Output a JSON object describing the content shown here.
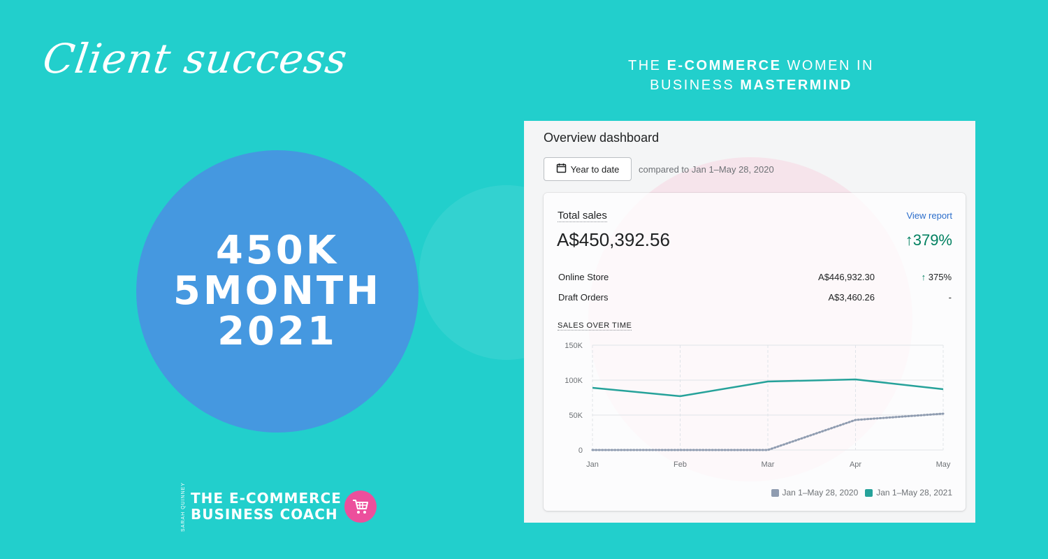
{
  "header": {
    "script_title": "Client success",
    "mastermind_line1_a": "THE ",
    "mastermind_line1_b": "E-COMMERCE",
    "mastermind_line1_c": " WOMEN IN",
    "mastermind_line2_a": "BUSINESS ",
    "mastermind_line2_b": "MASTERMIND"
  },
  "highlight": {
    "line1": "450K",
    "line2": "5MONTH",
    "line3": "2021"
  },
  "logo": {
    "vertical": "SARAH QUINNEY",
    "line1": "THE E-COMMERCE",
    "line2": "BUSINESS COACH",
    "icon": "shopping-cart-icon"
  },
  "dashboard": {
    "title": "Overview dashboard",
    "date_button": "Year to date",
    "date_icon": "calendar-icon",
    "compare_text": "compared to Jan 1–May 28, 2020",
    "total_label": "Total sales",
    "view_report": "View report",
    "total_value": "A$450,392.56",
    "total_change": "379%",
    "rows": [
      {
        "label": "Online Store",
        "amount": "A$446,932.30",
        "change": "375%",
        "trend": "up"
      },
      {
        "label": "Draft Orders",
        "amount": "A$3,460.26",
        "change": "-",
        "trend": "none"
      }
    ],
    "sales_over_time_label": "SALES OVER TIME"
  },
  "colors": {
    "background": "#22cfcc",
    "circle": "#4598e0",
    "series_2021": "#26a29a",
    "series_2020": "#8f9cb0",
    "positive": "#008060"
  },
  "chart_data": {
    "type": "line",
    "title": "SALES OVER TIME",
    "categories": [
      "Jan",
      "Feb",
      "Mar",
      "Apr",
      "May"
    ],
    "y_ticks": [
      "150K",
      "100K",
      "50K",
      "0"
    ],
    "ylim": [
      0,
      150000
    ],
    "series": [
      {
        "name": "Jan 1–May 28, 2021",
        "values": [
          89000,
          77000,
          98000,
          101000,
          87000
        ],
        "style": "solid"
      },
      {
        "name": "Jan 1–May 28, 2020",
        "values": [
          0,
          0,
          0,
          43000,
          52000
        ],
        "style": "dotted"
      }
    ],
    "legend_order": [
      "Jan 1–May 28, 2020",
      "Jan 1–May 28, 2021"
    ],
    "legend_position": "bottom-right",
    "grid": true
  }
}
